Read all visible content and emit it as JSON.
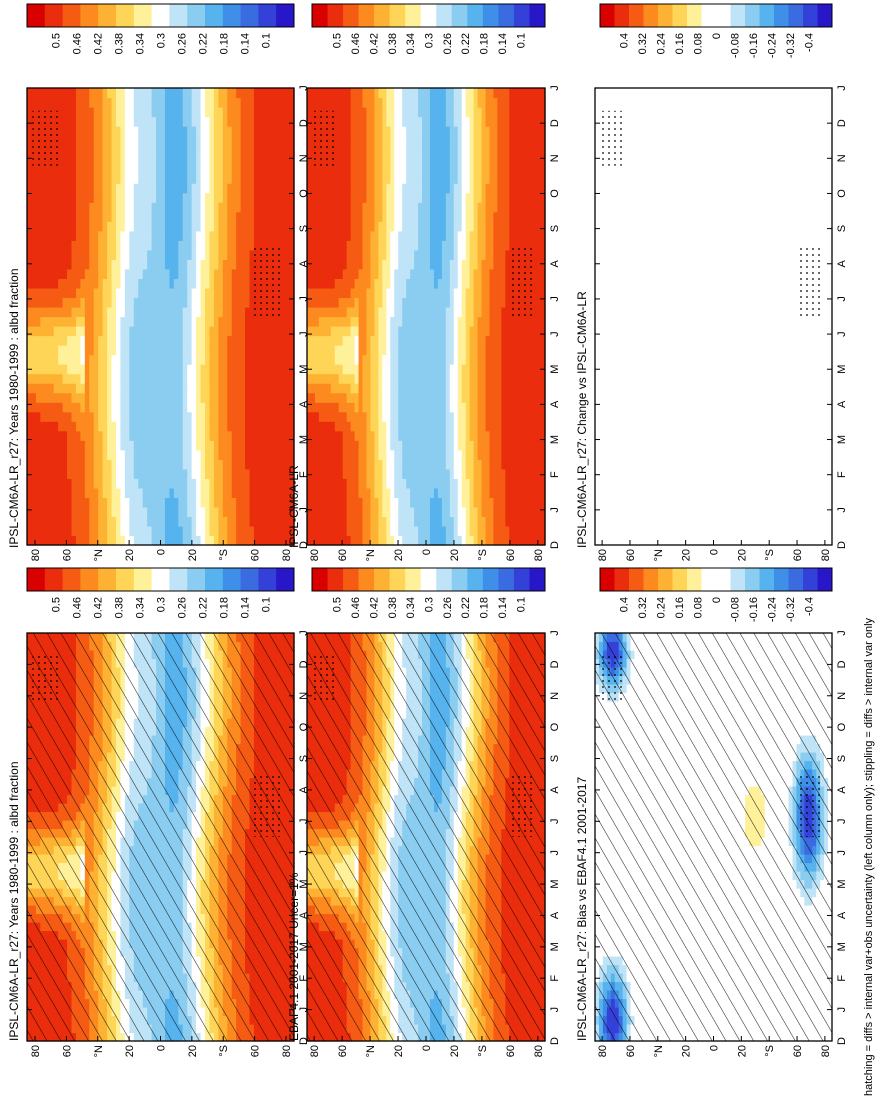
{
  "chart_data": [
    {
      "type": "heatmap",
      "title": "IPSL-CM6A-LR_r27: Years 1980-1999 : albd fraction",
      "x_ticks": [
        "D",
        "J",
        "F",
        "M",
        "A",
        "M",
        "J",
        "J",
        "A",
        "S",
        "O",
        "N",
        "D",
        "J"
      ],
      "y_ticks": [
        "80",
        "60",
        "°N",
        "20",
        "0",
        "20",
        "°S",
        "60",
        "80"
      ],
      "colorbar_labels": [
        "0.5",
        "0.46",
        "0.42",
        "0.38",
        "0.34",
        "0.3",
        "0.26",
        "0.22",
        "0.18",
        "0.14",
        "0.1"
      ],
      "colorbar_colors": [
        "#d90000",
        "#ea2d0c",
        "#f65b14",
        "#fd8a1f",
        "#feb233",
        "#fed557",
        "#fff09a",
        "#ffffff",
        "#bfe3f7",
        "#8bcdf1",
        "#56b3ee",
        "#3f8ee8",
        "#3b6be0",
        "#3341d8",
        "#2817c9"
      ],
      "hatching": true,
      "stippling": true
    },
    {
      "type": "heatmap",
      "title": "IPSL-CM6A-LR_r27: Years 1980-1999 : albd fraction",
      "x_ticks": [
        "D",
        "J",
        "F",
        "M",
        "A",
        "M",
        "J",
        "J",
        "A",
        "S",
        "O",
        "N",
        "D",
        "J"
      ],
      "y_ticks": [
        "80",
        "60",
        "°N",
        "20",
        "0",
        "20",
        "°S",
        "60",
        "80"
      ],
      "colorbar_labels": [
        "0.5",
        "0.46",
        "0.42",
        "0.38",
        "0.34",
        "0.3",
        "0.26",
        "0.22",
        "0.18",
        "0.14",
        "0.1"
      ],
      "colorbar_colors": [
        "#d90000",
        "#ea2d0c",
        "#f65b14",
        "#fd8a1f",
        "#feb233",
        "#fed557",
        "#fff09a",
        "#ffffff",
        "#bfe3f7",
        "#8bcdf1",
        "#56b3ee",
        "#3f8ee8",
        "#3b6be0",
        "#3341d8",
        "#2817c9"
      ],
      "hatching": false,
      "stippling": true
    },
    {
      "type": "heatmap",
      "title": "EBAF4.1 2001-2017 Uncer=1%",
      "x_ticks": [
        "D",
        "J",
        "F",
        "M",
        "A",
        "M",
        "J",
        "J",
        "A",
        "S",
        "O",
        "N",
        "D",
        "J"
      ],
      "y_ticks": [
        "80",
        "60",
        "°N",
        "20",
        "0",
        "20",
        "°S",
        "60",
        "80"
      ],
      "colorbar_labels": [
        "0.5",
        "0.46",
        "0.42",
        "0.38",
        "0.34",
        "0.3",
        "0.26",
        "0.22",
        "0.18",
        "0.14",
        "0.1"
      ],
      "colorbar_colors": [
        "#d90000",
        "#ea2d0c",
        "#f65b14",
        "#fd8a1f",
        "#feb233",
        "#fed557",
        "#fff09a",
        "#ffffff",
        "#bfe3f7",
        "#8bcdf1",
        "#56b3ee",
        "#3f8ee8",
        "#3b6be0",
        "#3341d8",
        "#2817c9"
      ],
      "hatching": true,
      "stippling": true
    },
    {
      "type": "heatmap",
      "title": "IPSL-CM6A-LR",
      "x_ticks": [
        "D",
        "J",
        "F",
        "M",
        "A",
        "M",
        "J",
        "J",
        "A",
        "S",
        "O",
        "N",
        "D",
        "J"
      ],
      "y_ticks": [
        "80",
        "60",
        "°N",
        "20",
        "0",
        "20",
        "°S",
        "60",
        "80"
      ],
      "colorbar_labels": [
        "0.5",
        "0.46",
        "0.42",
        "0.38",
        "0.34",
        "0.3",
        "0.26",
        "0.22",
        "0.18",
        "0.14",
        "0.1"
      ],
      "colorbar_colors": [
        "#d90000",
        "#ea2d0c",
        "#f65b14",
        "#fd8a1f",
        "#feb233",
        "#fed557",
        "#fff09a",
        "#ffffff",
        "#bfe3f7",
        "#8bcdf1",
        "#56b3ee",
        "#3f8ee8",
        "#3b6be0",
        "#3341d8",
        "#2817c9"
      ],
      "hatching": false,
      "stippling": true
    },
    {
      "type": "heatmap",
      "title": "IPSL-CM6A-LR_r27: Bias vs EBAF4.1 2001-2017",
      "x_ticks": [
        "D",
        "J",
        "F",
        "M",
        "A",
        "M",
        "J",
        "J",
        "A",
        "S",
        "O",
        "N",
        "D",
        "J"
      ],
      "y_ticks": [
        "80",
        "60",
        "°N",
        "20",
        "0",
        "20",
        "°S",
        "60",
        "80"
      ],
      "colorbar_labels": [
        "0.4",
        "0.32",
        "0.24",
        "0.16",
        "0.08",
        "0",
        "-0.08",
        "-0.16",
        "-0.24",
        "-0.32",
        "-0.4"
      ],
      "colorbar_colors": [
        "#d90000",
        "#ea2d0c",
        "#f65b14",
        "#fd8a1f",
        "#feb233",
        "#fed557",
        "#fff09a",
        "#ffffff",
        "#ffffff",
        "#bfe3f7",
        "#8bcdf1",
        "#56b3ee",
        "#3f8ee8",
        "#3b6be0",
        "#3341d8",
        "#2817c9"
      ],
      "hatching": true,
      "stippling": true
    },
    {
      "type": "heatmap",
      "title": "IPSL-CM6A-LR_r27: Change vs IPSL-CM6A-LR",
      "x_ticks": [
        "D",
        "J",
        "F",
        "M",
        "A",
        "M",
        "J",
        "J",
        "A",
        "S",
        "O",
        "N",
        "D",
        "J"
      ],
      "y_ticks": [
        "80",
        "60",
        "°N",
        "20",
        "0",
        "20",
        "°S",
        "60",
        "80"
      ],
      "colorbar_labels": [
        "0.4",
        "0.32",
        "0.24",
        "0.16",
        "0.08",
        "0",
        "-0.08",
        "-0.16",
        "-0.24",
        "-0.32",
        "-0.4"
      ],
      "colorbar_colors": [
        "#d90000",
        "#ea2d0c",
        "#f65b14",
        "#fd8a1f",
        "#feb233",
        "#fed557",
        "#fff09a",
        "#ffffff",
        "#ffffff",
        "#bfe3f7",
        "#8bcdf1",
        "#56b3ee",
        "#3f8ee8",
        "#3b6be0",
        "#3341d8",
        "#2817c9"
      ],
      "hatching": false,
      "stippling": true
    }
  ],
  "footer": "hatching = diffs > internal var+obs uncertainty (left column only); stippling = diffs > internal var only"
}
